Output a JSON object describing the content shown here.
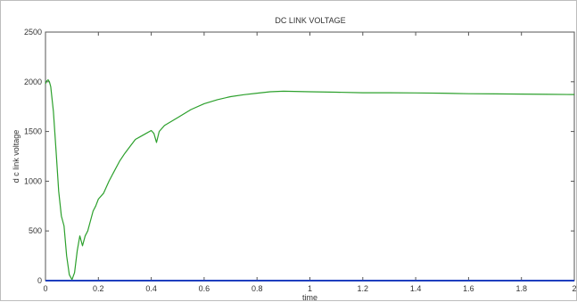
{
  "chart_data": {
    "type": "line",
    "title": "DC LINK VOLTAGE",
    "xlabel": "time",
    "ylabel": "d c link voltage",
    "xlim": [
      0,
      2
    ],
    "ylim": [
      0,
      2500
    ],
    "xticks": [
      0,
      0.2,
      0.4,
      0.6,
      0.8,
      1,
      1.2,
      1.4,
      1.6,
      1.8,
      2
    ],
    "xtick_labels": [
      "0",
      "0.2",
      "0.4",
      "0.6",
      "0.8",
      "1",
      "1.2",
      "1.4",
      "1.6",
      "1.8",
      "2"
    ],
    "yticks": [
      0,
      500,
      1000,
      1500,
      2000,
      2500
    ],
    "ytick_labels": [
      "0",
      "500",
      "1000",
      "1500",
      "2000",
      "2500"
    ],
    "grid": false,
    "series": [
      {
        "color": "#2ca02c",
        "x": [
          0,
          0.005,
          0.01,
          0.015,
          0.02,
          0.03,
          0.04,
          0.05,
          0.06,
          0.07,
          0.08,
          0.09,
          0.1,
          0.11,
          0.12,
          0.13,
          0.14,
          0.15,
          0.16,
          0.17,
          0.18,
          0.19,
          0.2,
          0.22,
          0.24,
          0.26,
          0.28,
          0.3,
          0.32,
          0.34,
          0.36,
          0.38,
          0.4,
          0.41,
          0.42,
          0.43,
          0.45,
          0.5,
          0.55,
          0.6,
          0.65,
          0.7,
          0.75,
          0.8,
          0.85,
          0.9,
          1.0,
          1.1,
          1.2,
          1.3,
          1.4,
          1.5,
          1.6,
          1.7,
          1.8,
          1.9,
          2.0
        ],
        "y": [
          1980,
          2010,
          2020,
          2000,
          1950,
          1700,
          1300,
          900,
          650,
          550,
          250,
          60,
          10,
          80,
          300,
          450,
          350,
          450,
          500,
          600,
          700,
          750,
          820,
          880,
          1000,
          1100,
          1200,
          1280,
          1350,
          1420,
          1450,
          1480,
          1510,
          1480,
          1390,
          1500,
          1560,
          1640,
          1720,
          1780,
          1820,
          1850,
          1870,
          1885,
          1900,
          1905,
          1900,
          1895,
          1890,
          1890,
          1888,
          1885,
          1880,
          1878,
          1876,
          1874,
          1872
        ]
      },
      {
        "color": "#1f3fbf",
        "x": [
          0,
          2
        ],
        "y": [
          0,
          0
        ]
      }
    ]
  }
}
